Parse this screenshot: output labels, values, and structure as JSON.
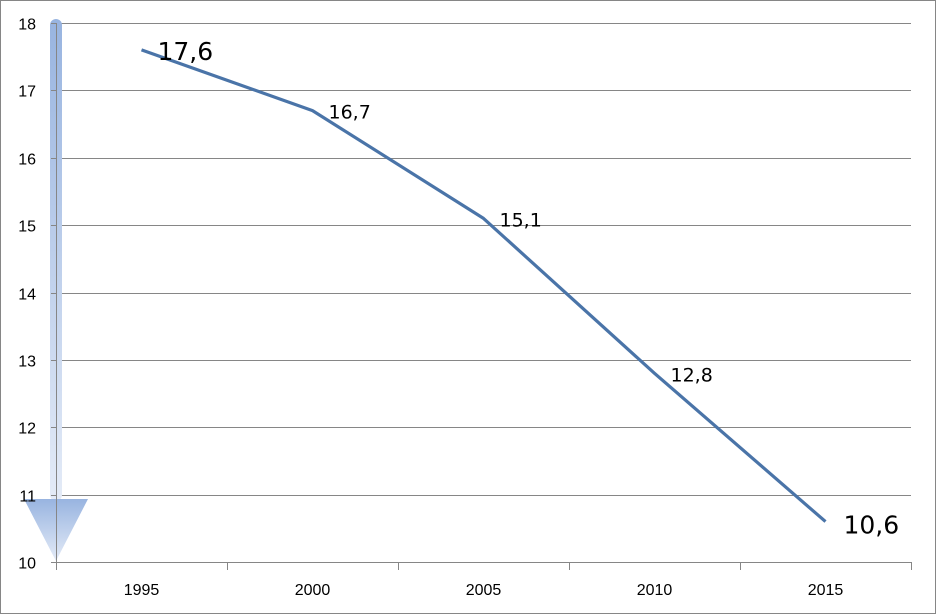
{
  "chart_data": {
    "type": "line",
    "title": "",
    "xlabel": "",
    "ylabel": "",
    "categories": [
      "1995",
      "2000",
      "2005",
      "2010",
      "2015"
    ],
    "series": [
      {
        "values": [
          17.6,
          16.7,
          15.1,
          12.8,
          10.6
        ]
      }
    ],
    "data_labels": [
      "17,6",
      "16,7",
      "15,1",
      "12,8",
      "10,6"
    ],
    "ylim": [
      10,
      18
    ],
    "yticks": [
      10,
      11,
      12,
      13,
      14,
      15,
      16,
      17,
      18
    ],
    "grid": true,
    "legend": "none",
    "decoration": "downward arrow along y-axis",
    "colors": {
      "line": "#4a74a8",
      "grid": "#868686",
      "arrow_top": "#98b4e0",
      "arrow_bottom": "#e4ebf7"
    }
  }
}
